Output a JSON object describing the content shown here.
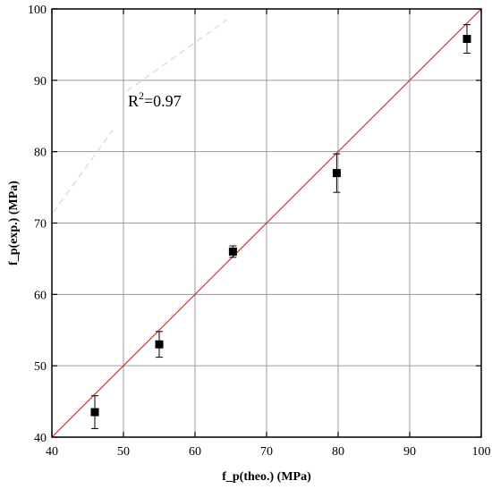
{
  "chart_data": {
    "type": "scatter",
    "title": "",
    "xlabel": "f_p(theo.) (MPa)",
    "ylabel": "f_p(exp.) (MPa)",
    "xlim": [
      40,
      100
    ],
    "ylim": [
      40,
      100
    ],
    "xticks": [
      40,
      50,
      60,
      70,
      80,
      90,
      100
    ],
    "yticks": [
      40,
      50,
      60,
      70,
      80,
      90,
      100
    ],
    "grid": true,
    "legend": "none",
    "series": [
      {
        "marker": "square",
        "color": "#000000",
        "points": [
          {
            "x": 46.0,
            "y": 43.5,
            "err": 2.3
          },
          {
            "x": 55.0,
            "y": 53.0,
            "err": 1.8
          },
          {
            "x": 65.3,
            "y": 66.0,
            "err": 0.8
          },
          {
            "x": 79.8,
            "y": 77.0,
            "err": 2.7
          },
          {
            "x": 98.0,
            "y": 95.8,
            "err": 2.0
          }
        ]
      }
    ],
    "reference_line": {
      "x": [
        40,
        100
      ],
      "y": [
        40,
        100
      ],
      "color": "#c0392b"
    },
    "annotation": {
      "base": "R",
      "sup": "2",
      "rest": "=0.97"
    },
    "colors": {
      "grid": "#9b9b9b",
      "line": "#c0392b",
      "marker": "#000000",
      "faint": "#cfe3f2"
    }
  }
}
